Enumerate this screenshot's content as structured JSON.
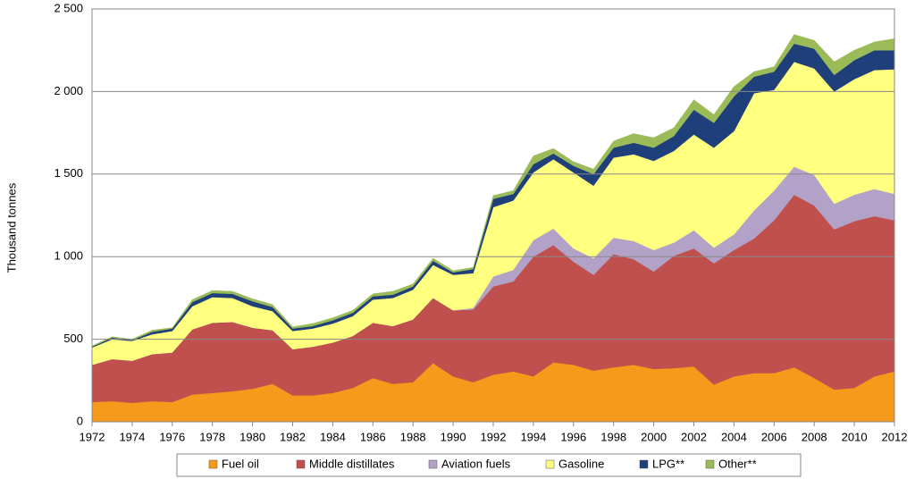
{
  "chart_data": {
    "type": "stacked-area",
    "y_label": "Thousand tonnes",
    "x": [
      1972,
      1973,
      1974,
      1975,
      1976,
      1977,
      1978,
      1979,
      1980,
      1981,
      1982,
      1983,
      1984,
      1985,
      1986,
      1987,
      1988,
      1989,
      1990,
      1991,
      1992,
      1993,
      1994,
      1995,
      1996,
      1997,
      1998,
      1999,
      2000,
      2001,
      2002,
      2003,
      2004,
      2005,
      2006,
      2007,
      2008,
      2009,
      2010,
      2011,
      2012
    ],
    "xlim": [
      1972,
      2012
    ],
    "xticks": [
      1972,
      1974,
      1976,
      1978,
      1980,
      1982,
      1984,
      1986,
      1988,
      1990,
      1992,
      1994,
      1996,
      1998,
      2000,
      2002,
      2004,
      2006,
      2008,
      2010,
      2012
    ],
    "ylim": [
      0,
      2500
    ],
    "yticks": [
      0,
      500,
      {
        "value": 1000,
        "label": "1 000"
      },
      {
        "value": 1500,
        "label": "1 500"
      },
      {
        "value": 2000,
        "label": "2 000"
      },
      {
        "value": 2500,
        "label": "2 500"
      }
    ],
    "grid": true,
    "legend": "bottom",
    "series": [
      {
        "name": "Fuel oil",
        "color": "#f59a1b",
        "values": [
          120,
          125,
          115,
          125,
          120,
          165,
          175,
          185,
          200,
          230,
          160,
          160,
          175,
          205,
          265,
          230,
          240,
          355,
          275,
          240,
          285,
          305,
          275,
          360,
          345,
          310,
          330,
          345,
          320,
          325,
          335,
          225,
          275,
          295,
          295,
          330,
          265,
          195,
          205,
          275,
          305
        ]
      },
      {
        "name": "Middle distillates",
        "color": "#c0504d",
        "values": [
          225,
          255,
          255,
          285,
          300,
          395,
          425,
          420,
          370,
          325,
          280,
          295,
          305,
          315,
          335,
          350,
          380,
          395,
          400,
          440,
          535,
          545,
          725,
          710,
          625,
          580,
          685,
          640,
          590,
          680,
          715,
          735,
          765,
          815,
          925,
          1045,
          1045,
          970,
          1010,
          970,
          915
        ]
      },
      {
        "name": "Aviation fuels",
        "color": "#b3a2c7",
        "values": [
          0,
          0,
          0,
          0,
          0,
          0,
          0,
          0,
          0,
          0,
          0,
          0,
          0,
          0,
          0,
          0,
          0,
          0,
          0,
          10,
          60,
          70,
          100,
          100,
          80,
          100,
          100,
          110,
          130,
          80,
          110,
          95,
          95,
          170,
          180,
          170,
          185,
          155,
          160,
          165,
          160
        ]
      },
      {
        "name": "Gasoline",
        "color": "#ffff80",
        "values": [
          105,
          120,
          120,
          120,
          130,
          140,
          155,
          145,
          130,
          115,
          110,
          110,
          115,
          120,
          140,
          170,
          180,
          200,
          215,
          210,
          420,
          420,
          410,
          420,
          460,
          440,
          485,
          525,
          540,
          555,
          580,
          605,
          625,
          710,
          610,
          635,
          645,
          680,
          700,
          720,
          755
        ]
      },
      {
        "name": "LPG**",
        "color": "#1f3f7a",
        "values": [
          5,
          10,
          5,
          15,
          15,
          25,
          25,
          25,
          30,
          25,
          15,
          15,
          20,
          20,
          20,
          20,
          20,
          25,
          15,
          25,
          50,
          40,
          50,
          35,
          40,
          70,
          60,
          70,
          80,
          90,
          150,
          150,
          210,
          100,
          110,
          110,
          120,
          100,
          115,
          120,
          115
        ]
      },
      {
        "name": "Other**",
        "color": "#9bbb59",
        "values": [
          5,
          5,
          5,
          10,
          5,
          15,
          15,
          15,
          15,
          15,
          10,
          15,
          15,
          15,
          15,
          20,
          15,
          15,
          10,
          10,
          20,
          20,
          50,
          30,
          25,
          30,
          40,
          55,
          60,
          50,
          60,
          50,
          60,
          30,
          30,
          55,
          50,
          80,
          60,
          50,
          70
        ]
      }
    ]
  }
}
